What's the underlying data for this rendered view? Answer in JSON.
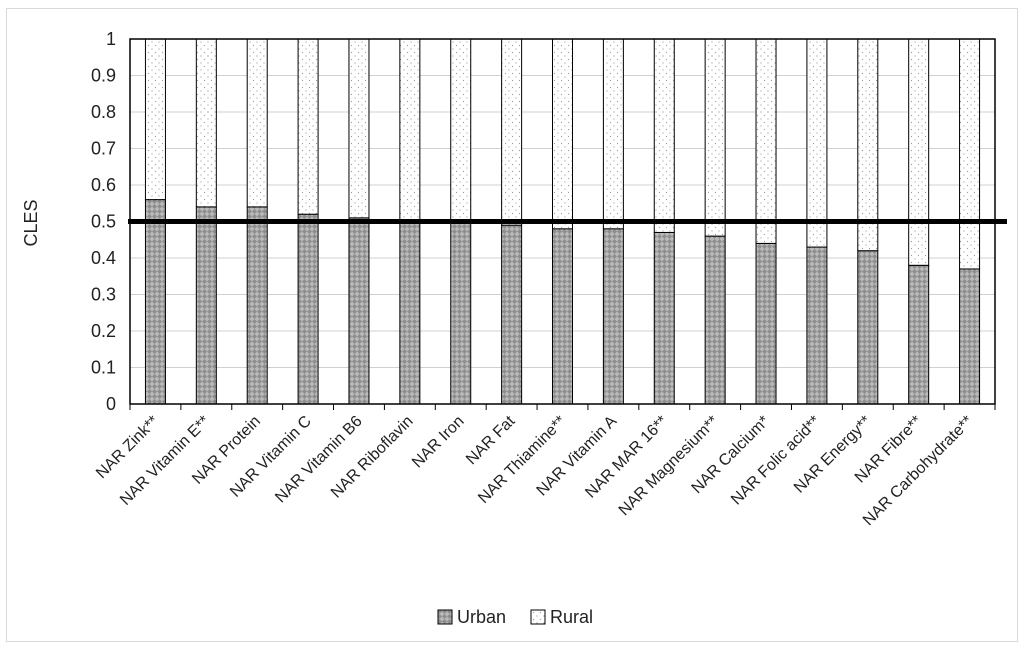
{
  "chart_data": {
    "type": "bar",
    "stacked": true,
    "categories": [
      "NAR Zink**",
      "NAR Vitamin E**",
      "NAR Protein",
      "NAR Vitamin C",
      "NAR Vitamin B6",
      "NAR Riboflavin",
      "NAR Iron",
      "NAR Fat",
      "NAR Thiamine**",
      "NAR Vitamin A",
      "NAR MAR 16**",
      "NAR Magnesium**",
      "NAR Calcium*",
      "NAR Folic acid**",
      "NAR Energy**",
      "NAR Fibre**",
      "NAR Carbohydrate**"
    ],
    "series": [
      {
        "name": "Urban",
        "values": [
          0.56,
          0.54,
          0.54,
          0.52,
          0.51,
          0.5,
          0.5,
          0.49,
          0.48,
          0.48,
          0.47,
          0.46,
          0.44,
          0.43,
          0.42,
          0.38,
          0.37
        ]
      },
      {
        "name": "Rural",
        "values": [
          0.44,
          0.46,
          0.46,
          0.48,
          0.49,
          0.5,
          0.5,
          0.51,
          0.52,
          0.52,
          0.53,
          0.54,
          0.56,
          0.57,
          0.58,
          0.62,
          0.63
        ]
      }
    ],
    "title": "",
    "xlabel": "",
    "ylabel": "CLES",
    "ylim": [
      0,
      1
    ],
    "yticks": [
      "0",
      "0.1",
      "0.2",
      "0.3",
      "0.4",
      "0.5",
      "0.6",
      "0.7",
      "0.8",
      "0.9",
      "1"
    ],
    "reference_line": 0.5,
    "grid": true,
    "legend_position": "bottom"
  }
}
